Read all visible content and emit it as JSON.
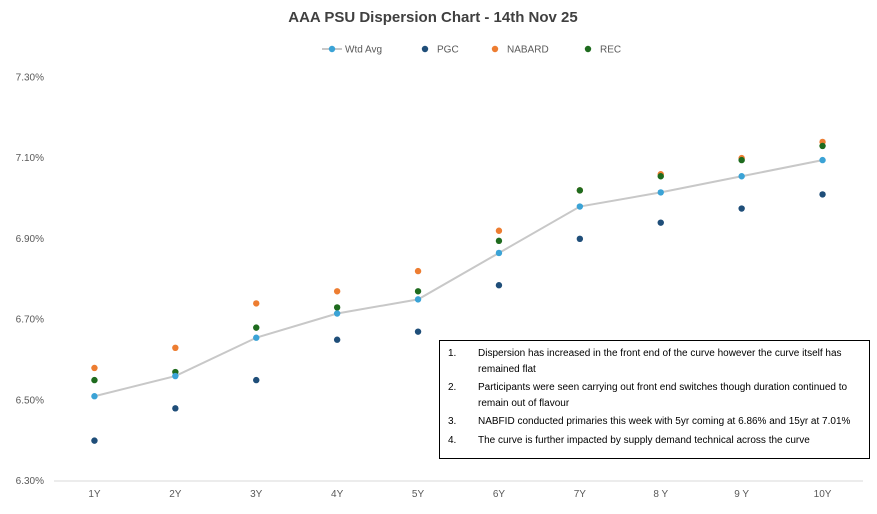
{
  "chart_data": {
    "type": "scatter",
    "title": "AAA PSU Dispersion Chart - 14th Nov 25",
    "categories": [
      "1Y",
      "2Y",
      "3Y",
      "4Y",
      "5Y",
      "6Y",
      "7Y",
      "8 Y",
      "9 Y",
      "10Y"
    ],
    "ylim": [
      6.3,
      7.4
    ],
    "yticks": [
      6.3,
      6.5,
      6.7,
      6.9,
      7.1,
      7.3
    ],
    "ytick_labels": [
      "6.30%",
      "6.50%",
      "6.70%",
      "6.90%",
      "7.10%",
      "7.30%"
    ],
    "xlabel": "",
    "ylabel": "",
    "grid": false,
    "legend_position": "top-center",
    "series": [
      {
        "name": "Wtd Avg",
        "style": "line-marker",
        "color": "#3ba3d6",
        "line_color": "#c8c8c8",
        "values": [
          6.51,
          6.56,
          6.655,
          6.715,
          6.75,
          6.865,
          6.98,
          7.015,
          7.055,
          7.095
        ]
      },
      {
        "name": "PGC",
        "style": "marker",
        "color": "#1f4e79",
        "values": [
          6.4,
          6.48,
          6.55,
          6.65,
          6.67,
          6.785,
          6.9,
          6.94,
          6.975,
          7.01
        ]
      },
      {
        "name": "NABARD",
        "style": "marker",
        "color": "#ed7d31",
        "values": [
          6.58,
          6.63,
          6.74,
          6.77,
          6.82,
          6.92,
          7.02,
          7.06,
          7.1,
          7.14
        ]
      },
      {
        "name": "REC",
        "style": "marker",
        "color": "#1e6b1e",
        "values": [
          6.55,
          6.57,
          6.68,
          6.73,
          6.77,
          6.895,
          7.02,
          7.055,
          7.095,
          7.13
        ]
      }
    ]
  },
  "notes": [
    {
      "num": "1.",
      "text": "Dispersion has increased in the front end of the curve however the curve itself has remained flat"
    },
    {
      "num": "2.",
      "text": "Participants were seen carrying out front end switches though duration continued to remain out of flavour"
    },
    {
      "num": "3.",
      "text": "NABFID conducted primaries this week with 5yr coming at 6.86% and 15yr at 7.01%"
    },
    {
      "num": "4.",
      "text": "The curve is further impacted by supply demand technical across the curve"
    }
  ]
}
